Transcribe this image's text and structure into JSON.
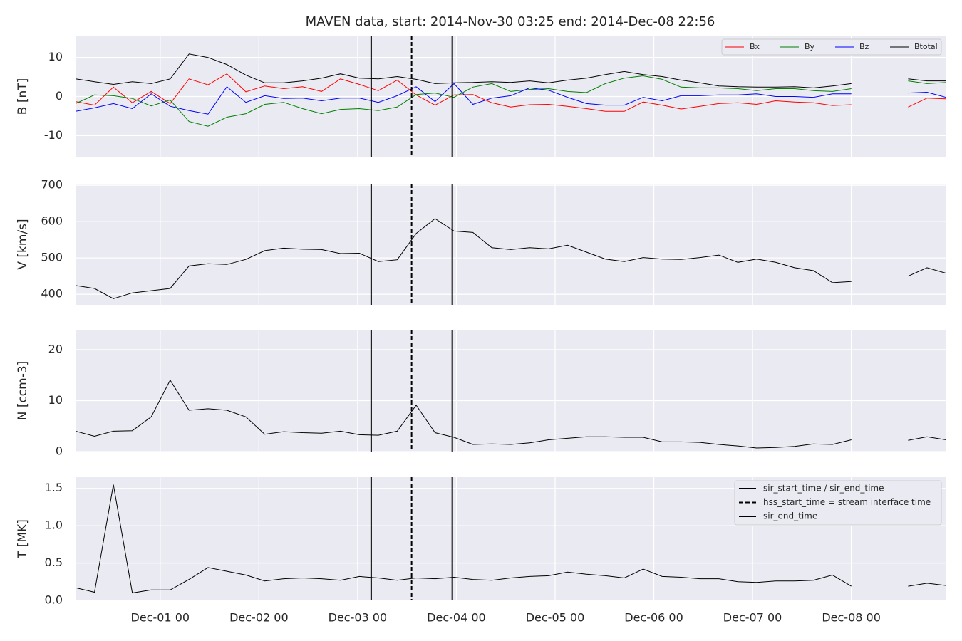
{
  "chart_data": {
    "type": "line",
    "title": "MAVEN data, start: 2014-Nov-30 03:25  end: 2014-Dec-08 22:56",
    "x": [
      "2014-11-30T03:25",
      "2014-11-30T08:01",
      "2014-11-30T12:37",
      "2014-11-30T17:13",
      "2014-11-30T21:49",
      "2014-12-01T02:25",
      "2014-12-01T07:01",
      "2014-12-01T11:37",
      "2014-12-01T16:13",
      "2014-12-01T20:49",
      "2014-12-02T01:25",
      "2014-12-02T06:01",
      "2014-12-02T10:37",
      "2014-12-02T15:13",
      "2014-12-02T19:49",
      "2014-12-03T00:25",
      "2014-12-03T05:01",
      "2014-12-03T09:37",
      "2014-12-03T14:13",
      "2014-12-03T18:49",
      "2014-12-03T23:25",
      "2014-12-04T04:01",
      "2014-12-04T08:37",
      "2014-12-04T13:13",
      "2014-12-04T17:49",
      "2014-12-04T22:25",
      "2014-12-05T03:01",
      "2014-12-05T07:37",
      "2014-12-05T12:13",
      "2014-12-05T16:49",
      "2014-12-05T21:25",
      "2014-12-06T02:01",
      "2014-12-06T06:37",
      "2014-12-06T11:13",
      "2014-12-06T15:49",
      "2014-12-06T20:25",
      "2014-12-07T01:01",
      "2014-12-07T05:37",
      "2014-12-07T10:13",
      "2014-12-07T14:49",
      "2014-12-07T19:25",
      "2014-12-08T00:01",
      "2014-12-08T04:37",
      "2014-12-08T09:13",
      "2014-12-08T13:49",
      "2014-12-08T18:25",
      "2014-12-08T23:01"
    ],
    "xlim": [
      "2014-11-30T03:25",
      "2014-12-08T22:56"
    ],
    "xticks": [
      {
        "value": "2014-12-01T00:00",
        "label": "Dec-01 00"
      },
      {
        "value": "2014-12-02T00:00",
        "label": "Dec-02 00"
      },
      {
        "value": "2014-12-03T00:00",
        "label": "Dec-03 00"
      },
      {
        "value": "2014-12-04T00:00",
        "label": "Dec-04 00"
      },
      {
        "value": "2014-12-05T00:00",
        "label": "Dec-05 00"
      },
      {
        "value": "2014-12-06T00:00",
        "label": "Dec-06 00"
      },
      {
        "value": "2014-12-07T00:00",
        "label": "Dec-07 00"
      },
      {
        "value": "2014-12-08T00:00",
        "label": "Dec-08 00"
      }
    ],
    "grid": true,
    "events": [
      {
        "name": "sir_start_time / sir_end_time",
        "x": "2014-12-03T03:17",
        "style": "solid",
        "color": "#000000"
      },
      {
        "name": "hss_start_time = stream interface time",
        "x": "2014-12-03T13:07",
        "style": "dashed",
        "color": "#000000"
      },
      {
        "name": "sir_end_time",
        "x": "2014-12-03T23:00",
        "style": "solid",
        "color": "#000000"
      }
    ],
    "events_legend": {
      "panel": 3,
      "corner": "upper right"
    },
    "panels": [
      {
        "ylabel": "B [nT]",
        "ylim": [
          -15.6,
          15.6
        ],
        "yticks": [
          -10,
          0,
          10
        ],
        "legend": "upper right",
        "series": [
          {
            "name": "Bx",
            "color": "#ff0000",
            "values": [
              -1.3,
              -2.2,
              2.4,
              -1.6,
              1.3,
              -1.8,
              4.5,
              3.0,
              5.8,
              1.2,
              2.7,
              2.0,
              2.5,
              1.3,
              4.5,
              3.1,
              1.5,
              4.2,
              0.4,
              -2.2,
              0.4,
              0.5,
              -1.6,
              -2.7,
              -2.1,
              -2.0,
              -2.5,
              -3.1,
              -3.8,
              -3.8,
              -1.4,
              -2.2,
              -3.2,
              -2.5,
              -1.8,
              -1.6,
              -2.0,
              -1.1,
              -1.4,
              -1.6,
              -2.3,
              -2.1,
              null,
              null,
              -2.7,
              -0.4,
              -0.6
            ]
          },
          {
            "name": "By",
            "color": "#008000",
            "values": [
              -1.8,
              0.4,
              0.2,
              -0.5,
              -2.4,
              -0.9,
              -6.4,
              -7.6,
              -5.3,
              -4.4,
              -2.0,
              -1.5,
              -3.1,
              -4.4,
              -3.3,
              -3.1,
              -3.6,
              -2.7,
              0.5,
              0.9,
              -0.2,
              2.4,
              3.3,
              1.3,
              1.8,
              2.0,
              1.3,
              1.0,
              3.3,
              4.7,
              5.3,
              4.4,
              2.4,
              2.2,
              2.2,
              2.0,
              1.5,
              2.0,
              2.0,
              1.5,
              1.3,
              2.0,
              null,
              null,
              4.0,
              3.3,
              3.6
            ]
          },
          {
            "name": "Bz",
            "color": "#0000ff",
            "values": [
              -3.8,
              -2.9,
              -1.8,
              -3.1,
              0.7,
              -2.5,
              -3.6,
              -4.5,
              2.5,
              -1.5,
              0.2,
              -0.5,
              -0.4,
              -1.1,
              -0.4,
              -0.4,
              -1.5,
              0.2,
              2.5,
              -1.3,
              3.3,
              -2.0,
              -0.4,
              0.2,
              2.2,
              1.6,
              -0.2,
              -1.8,
              -2.2,
              -2.2,
              -0.2,
              -1.1,
              0.2,
              0.2,
              0.4,
              0.4,
              0.7,
              0,
              0,
              -0.2,
              0.7,
              0.7,
              null,
              null,
              0.9,
              1.1,
              -0.2
            ]
          },
          {
            "name": "Btotal",
            "color": "#000000",
            "values": [
              4.5,
              3.8,
              3.1,
              3.8,
              3.3,
              4.5,
              10.9,
              10.0,
              8.2,
              5.5,
              3.5,
              3.5,
              4.0,
              4.7,
              5.8,
              4.7,
              4.5,
              5.1,
              4.4,
              3.3,
              3.5,
              3.6,
              3.8,
              3.6,
              4.0,
              3.5,
              4.2,
              4.7,
              5.6,
              6.4,
              5.6,
              5.1,
              4.2,
              3.5,
              2.7,
              2.5,
              2.4,
              2.4,
              2.5,
              2.2,
              2.7,
              3.3,
              null,
              null,
              4.5,
              4.0,
              4.0
            ]
          }
        ]
      },
      {
        "ylabel": "V [km/s]",
        "ylim": [
          371,
          704
        ],
        "yticks": [
          400,
          500,
          600,
          700
        ],
        "series": [
          {
            "color": "#000000",
            "values": [
              424,
              416,
              388,
              404,
              410,
              416,
              478,
              484,
              482,
              496,
              520,
              527,
              524,
              523,
              512,
              513,
              490,
              495,
              567,
              608,
              574,
              570,
              528,
              523,
              528,
              525,
              535,
              516,
              497,
              490,
              501,
              497,
              496,
              501,
              508,
              488,
              497,
              488,
              473,
              465,
              432,
              435,
              null,
              null,
              450,
              473,
              458
            ]
          }
        ]
      },
      {
        "ylabel": "N [ccm-3]",
        "ylim": [
          0,
          23.9
        ],
        "yticks": [
          0,
          10,
          20
        ],
        "series": [
          {
            "color": "#000000",
            "values": [
              4.0,
              3.0,
              4.0,
              4.1,
              6.8,
              14.0,
              8.1,
              8.4,
              8.1,
              6.8,
              3.4,
              3.9,
              3.7,
              3.6,
              4.0,
              3.3,
              3.2,
              4.0,
              9.1,
              3.7,
              2.8,
              1.4,
              1.5,
              1.4,
              1.7,
              2.3,
              2.6,
              2.9,
              2.9,
              2.8,
              2.8,
              1.9,
              1.9,
              1.8,
              1.4,
              1.1,
              0.7,
              0.8,
              1.0,
              1.5,
              1.4,
              2.3,
              null,
              null,
              2.2,
              2.9,
              2.3
            ]
          }
        ]
      },
      {
        "ylabel": "T [MK]",
        "ylim": [
          0,
          1.65
        ],
        "yticks": [
          {
            "value": 0,
            "label": "0.0"
          },
          0.5,
          {
            "value": 1,
            "label": "1.0"
          },
          1.5
        ],
        "series": [
          {
            "color": "#000000",
            "values": [
              0.17,
              0.11,
              1.55,
              0.1,
              0.14,
              0.14,
              0.28,
              0.44,
              0.39,
              0.34,
              0.26,
              0.29,
              0.3,
              0.29,
              0.27,
              0.32,
              0.3,
              0.27,
              0.3,
              0.29,
              0.31,
              0.28,
              0.27,
              0.3,
              0.32,
              0.33,
              0.38,
              0.35,
              0.33,
              0.3,
              0.42,
              0.32,
              0.31,
              0.29,
              0.29,
              0.25,
              0.24,
              0.26,
              0.26,
              0.27,
              0.34,
              0.19,
              null,
              null,
              0.19,
              0.23,
              0.2
            ]
          }
        ]
      }
    ]
  }
}
